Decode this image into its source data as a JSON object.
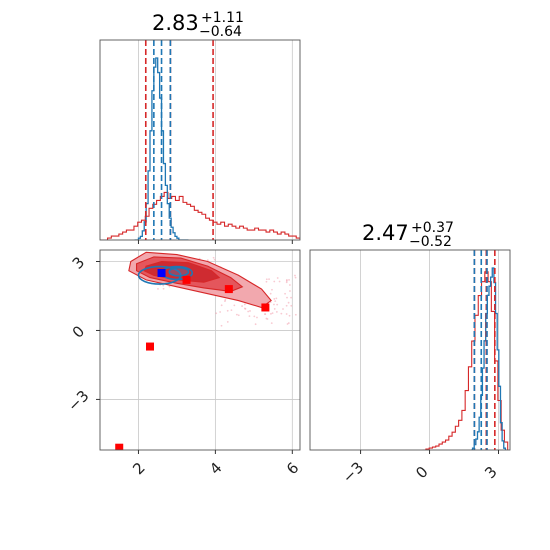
{
  "chart_data": {
    "type": "corner",
    "series": [
      {
        "name": "",
        "color": "#1f77b4"
      },
      {
        "name": "",
        "color": "#d62728"
      }
    ],
    "params": [
      {
        "title_value": "2.83",
        "title_plus": "+1.11",
        "title_minus": "−0.64",
        "xlim": [
          1.0,
          6.2
        ],
        "ticks": [
          2,
          4,
          6
        ],
        "tick_labels": [
          "2",
          "4",
          "6"
        ],
        "quantiles_blue": [
          2.4,
          2.6,
          2.83
        ],
        "quantiles_red": [
          2.19,
          2.83,
          3.94
        ],
        "hist_blue": {
          "x0": 1.9,
          "x1": 3.3,
          "counts": [
            0,
            0,
            0.01,
            0.02,
            0.05,
            0.1,
            0.2,
            0.38,
            0.6,
            0.82,
            0.95,
            1.0,
            0.92,
            0.78,
            0.6,
            0.42,
            0.3,
            0.2,
            0.12,
            0.07,
            0.04,
            0.02,
            0.01,
            0,
            0,
            0,
            0,
            0
          ]
        },
        "hist_red": {
          "x0": 1.0,
          "x1": 6.2,
          "counts": [
            0,
            0,
            0.01,
            0.02,
            0.02,
            0.03,
            0.04,
            0.05,
            0.05,
            0.07,
            0.09,
            0.1,
            0.12,
            0.16,
            0.18,
            0.2,
            0.22,
            0.24,
            0.21,
            0.22,
            0.2,
            0.22,
            0.19,
            0.18,
            0.17,
            0.15,
            0.14,
            0.13,
            0.11,
            0.1,
            0.09,
            0.08,
            0.09,
            0.07,
            0.08,
            0.07,
            0.06,
            0.07,
            0.06,
            0.05,
            0.05,
            0.06,
            0.05,
            0.05,
            0.04,
            0.05,
            0.04,
            0.03,
            0.04,
            0.03,
            0.02,
            0.02,
            0.01
          ]
        }
      },
      {
        "title_value": "2.47",
        "title_plus": "+0.37",
        "title_minus": "−0.52",
        "xlim": [
          -5.2,
          3.5
        ],
        "ticks": [
          -3,
          0,
          3
        ],
        "tick_labels": [
          "−3",
          "0",
          "3"
        ],
        "quantiles_blue": [
          1.95,
          2.25,
          2.5
        ],
        "quantiles_red": [
          1.95,
          2.47,
          2.84
        ],
        "hist_blue": {
          "x0": 1.8,
          "x1": 3.3,
          "counts": [
            0,
            0.01,
            0.03,
            0.06,
            0.1,
            0.18,
            0.3,
            0.45,
            0.6,
            0.75,
            0.85,
            0.9,
            0.95,
            1.0,
            0.92,
            0.75,
            0.55,
            0.35,
            0.15,
            0.05,
            0.01
          ]
        },
        "hist_red": {
          "x0": -0.3,
          "x1": 3.4,
          "counts": [
            0,
            0.005,
            0.01,
            0.015,
            0.02,
            0.03,
            0.04,
            0.05,
            0.07,
            0.09,
            0.12,
            0.15,
            0.2,
            0.3,
            0.42,
            0.55,
            0.68,
            0.78,
            0.85,
            0.9,
            0.85,
            0.7,
            0.45,
            0.25,
            0.1,
            0.04
          ]
        }
      }
    ],
    "contour_2d": {
      "yticks": [
        3,
        0,
        -3
      ],
      "ytick_labels": [
        "3",
        "0",
        "−3"
      ],
      "ylim": [
        -5.2,
        3.5
      ]
    },
    "blue_marker": {
      "x": 2.6,
      "y": 2.5
    },
    "red_markers": [
      {
        "x": 3.25,
        "y": 2.2
      },
      {
        "x": 4.35,
        "y": 1.8
      },
      {
        "x": 5.3,
        "y": 1.0
      },
      {
        "x": 2.3,
        "y": -0.7
      },
      {
        "x": 1.5,
        "y": -5.1
      }
    ],
    "grid": true
  }
}
